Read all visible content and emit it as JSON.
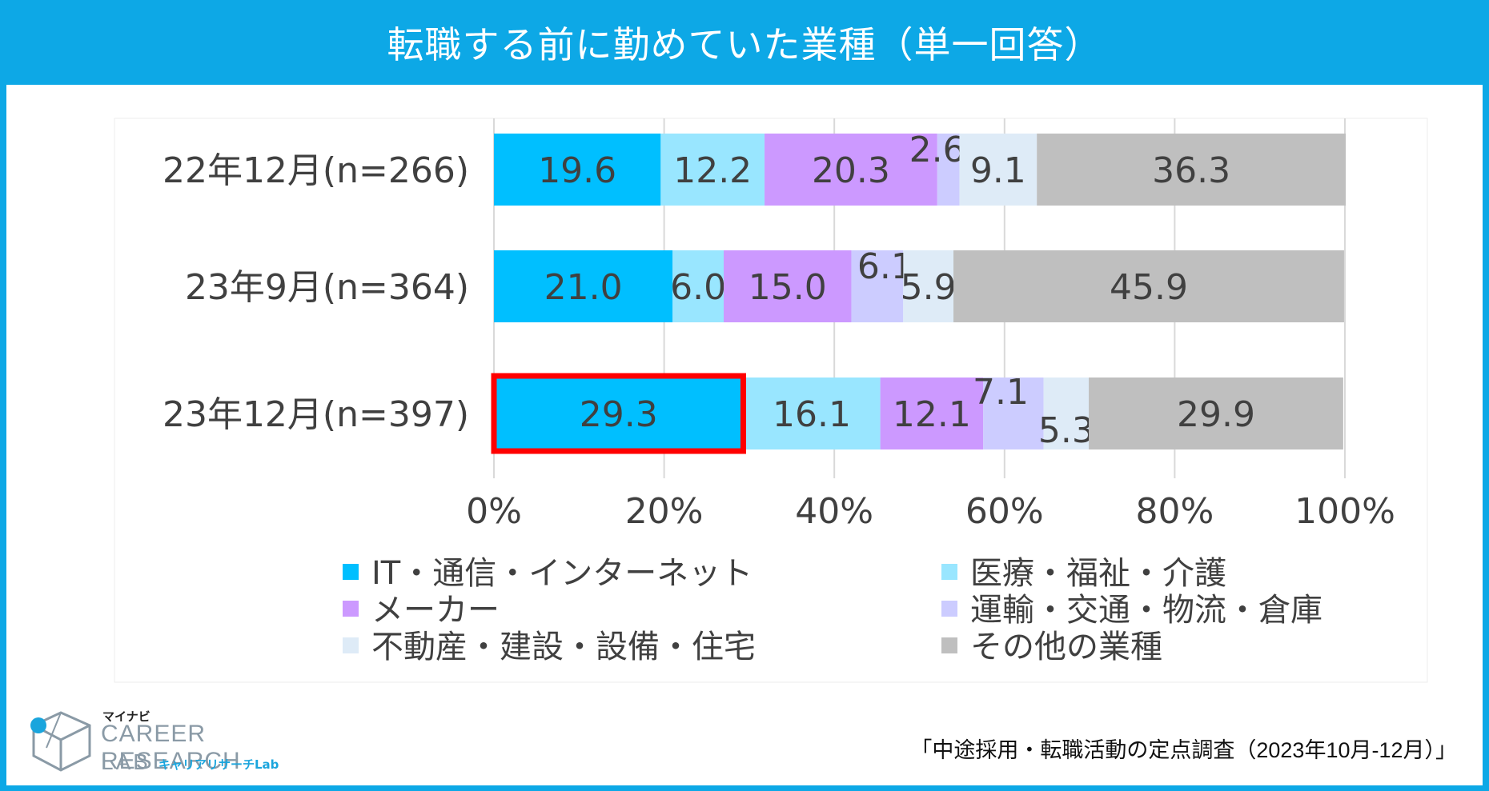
{
  "header": {
    "title": "転職する前に勤めていた業種（単一回答）"
  },
  "footer": {
    "source": "「中途採用・転職活動の定点調査（2023年10月-12月）」",
    "logo": {
      "mynavi": "マイナビ",
      "brand": "CAREER RESEARCH",
      "lab": "LAB",
      "lab_sub": "キャリアリサーチLab"
    }
  },
  "colors": {
    "frame": "#0DA8E6",
    "highlight_border": "#FF0000",
    "gridline": "#D9D9D9",
    "label_text": "#404040"
  },
  "chart_data": {
    "type": "bar",
    "orientation": "horizontal-stacked-100",
    "title": "転職する前に勤めていた業種（単一回答）",
    "categories": [
      "22年12月(n=266)",
      "23年9月(n=364)",
      "23年12月(n=397)"
    ],
    "series": [
      {
        "name": "IT・通信・インターネット",
        "color": "#00BFFF",
        "values": [
          19.6,
          21.0,
          29.3
        ]
      },
      {
        "name": "医療・福祉・介護",
        "color": "#99E6FF",
        "values": [
          12.2,
          6.0,
          16.1
        ]
      },
      {
        "name": "メーカー",
        "color": "#CC99FF",
        "values": [
          20.3,
          15.0,
          12.1
        ]
      },
      {
        "name": "運輸・交通・物流・倉庫",
        "color": "#CCCCFF",
        "values": [
          2.6,
          6.1,
          7.1
        ]
      },
      {
        "name": "不動産・建設・設備・住宅",
        "color": "#DEEBF7",
        "values": [
          9.1,
          5.9,
          5.3
        ]
      },
      {
        "name": "その他の業種",
        "color": "#BFBFBF",
        "values": [
          36.3,
          45.9,
          29.9
        ]
      }
    ],
    "value_labels": [
      [
        "19.6",
        "12.2",
        "20.3",
        "2.6",
        "9.1",
        "36.3"
      ],
      [
        "21.0",
        "6.0",
        "15.0",
        "6.1",
        "5.9",
        "45.9"
      ],
      [
        "29.3",
        "16.1",
        "12.1",
        "7.1",
        "5.3",
        "29.9"
      ]
    ],
    "xlim": [
      0,
      100
    ],
    "xticks": [
      "0%",
      "20%",
      "40%",
      "60%",
      "80%",
      "100%"
    ],
    "grid": true,
    "legend_position": "bottom",
    "highlight": {
      "category_index": 2,
      "series_index": 0
    }
  }
}
